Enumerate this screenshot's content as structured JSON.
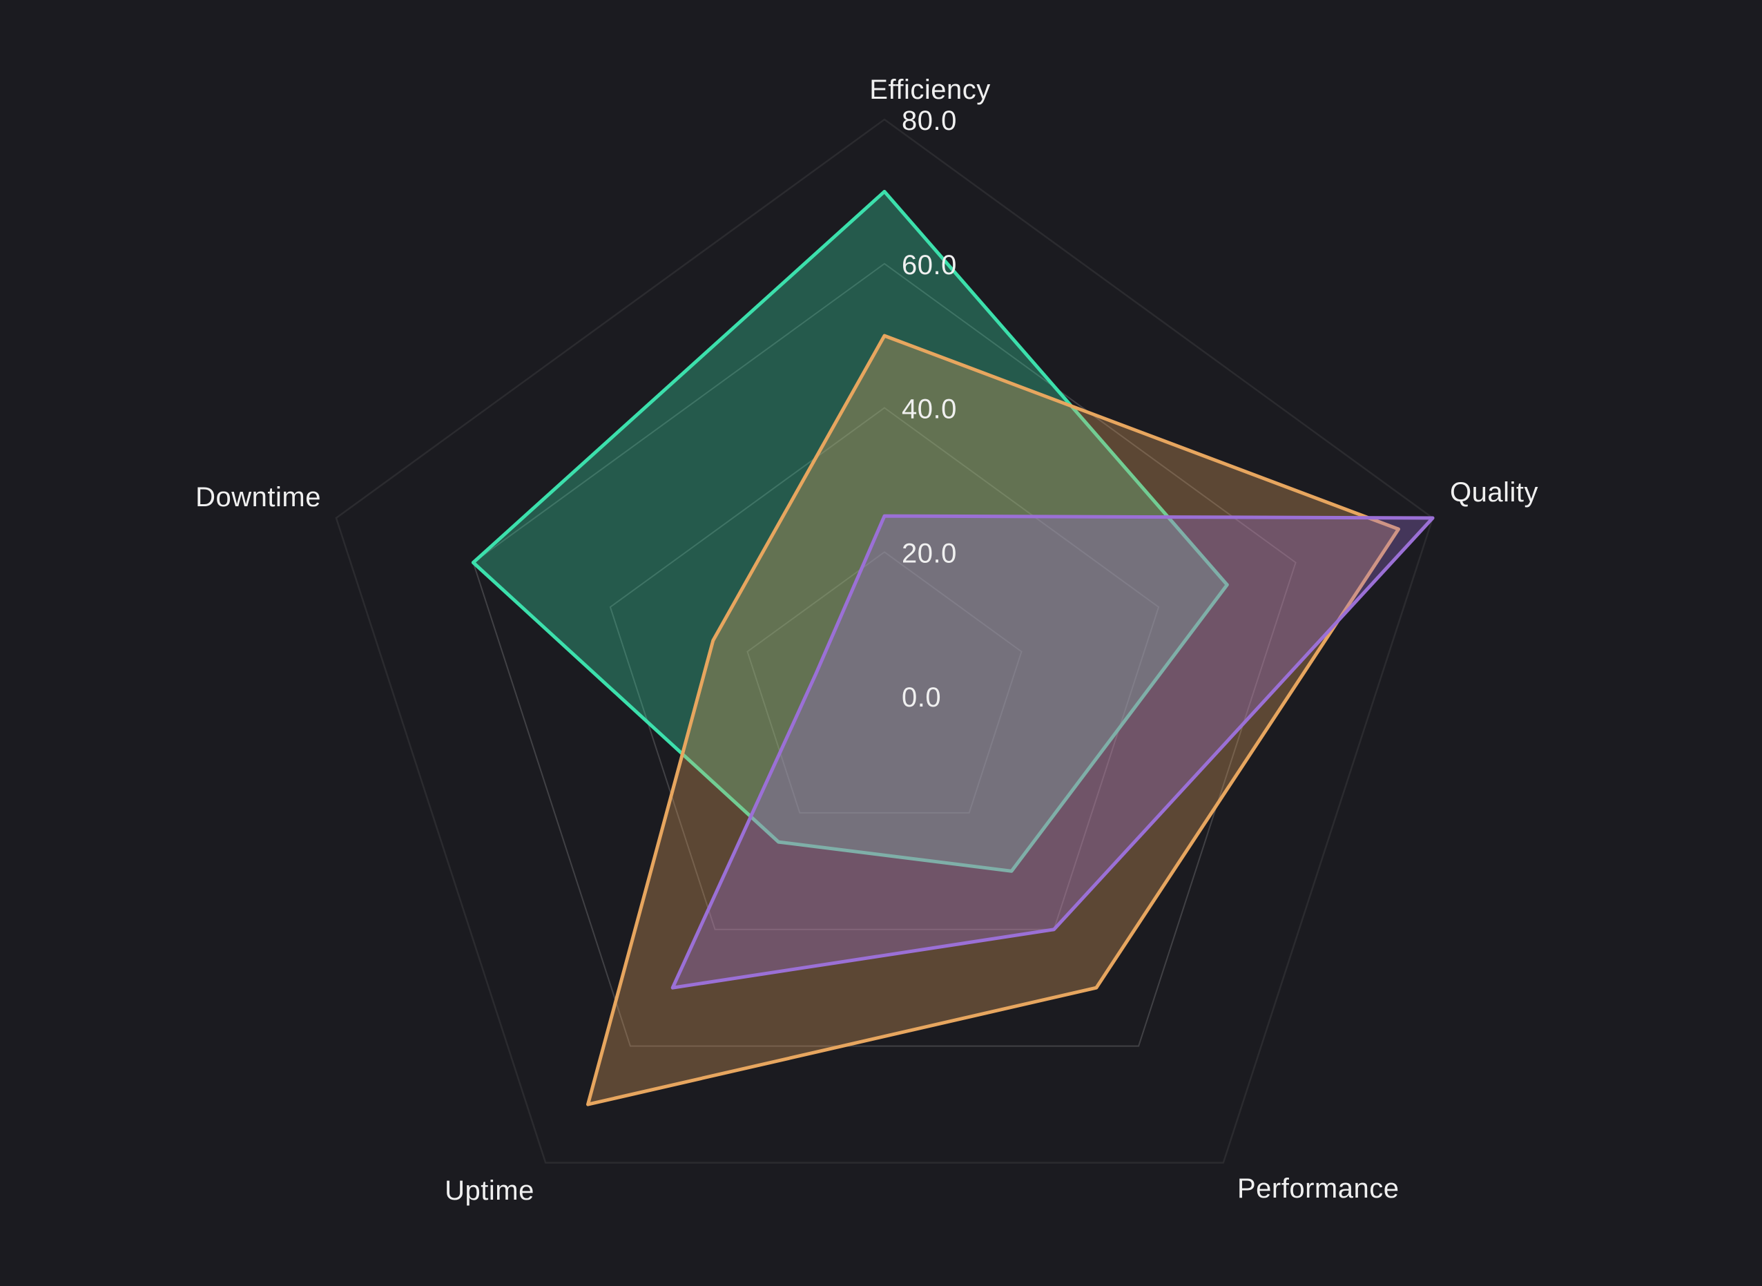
{
  "chart_data": {
    "type": "radar",
    "grid_shape": "pentagon",
    "axes": [
      "Efficiency",
      "Quality",
      "Performance",
      "Uptime",
      "Downtime"
    ],
    "series": [
      {
        "color": "#3ce0ac",
        "values": [
          70,
          50,
          30,
          25,
          60
        ]
      },
      {
        "color": "#e7a65f",
        "values": [
          50,
          75,
          50,
          70,
          25
        ]
      },
      {
        "color": "#9b70d6",
        "values": [
          25,
          80,
          40,
          50,
          10
        ]
      }
    ],
    "radial_range": [
      0,
      80
    ],
    "radial_ticks": [
      0,
      20,
      40,
      60,
      80
    ],
    "radial_tick_labels": [
      "0.0",
      "20.0",
      "40.0",
      "60.0",
      "80.0"
    ],
    "legend": "none",
    "colors": {
      "background": "#1b1b20",
      "grid_line": "rgba(255,255,255,0.17)",
      "outer_line": "rgba(255,255,255,0.07)",
      "label_text": "#f0f0f0"
    },
    "fill_opacity": 0.32
  }
}
